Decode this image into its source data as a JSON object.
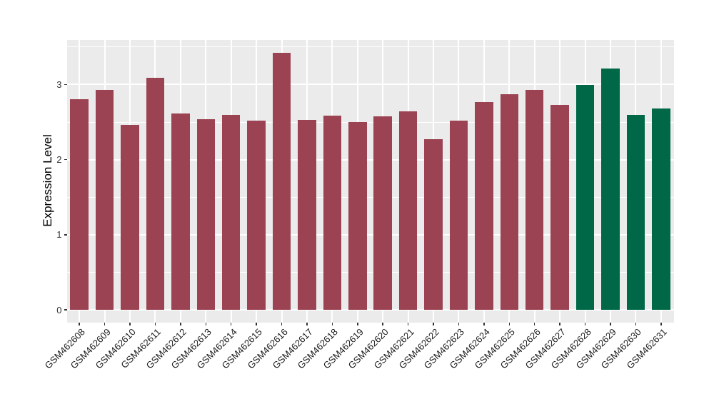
{
  "chart_data": {
    "type": "bar",
    "title": "",
    "xlabel": "",
    "ylabel": "Expression Level",
    "categories": [
      "GSM462608",
      "GSM462609",
      "GSM462610",
      "GSM462611",
      "GSM462612",
      "GSM462613",
      "GSM462614",
      "GSM462615",
      "GSM462616",
      "GSM462617",
      "GSM462618",
      "GSM462619",
      "GSM462620",
      "GSM462621",
      "GSM462622",
      "GSM462623",
      "GSM462624",
      "GSM462625",
      "GSM462626",
      "GSM462627",
      "GSM462628",
      "GSM462629",
      "GSM462630",
      "GSM462631"
    ],
    "values": [
      2.8,
      2.93,
      2.46,
      3.09,
      2.61,
      2.54,
      2.6,
      2.52,
      3.42,
      2.53,
      2.59,
      2.5,
      2.58,
      2.64,
      2.27,
      2.52,
      2.77,
      2.87,
      2.93,
      2.73,
      2.99,
      3.21,
      2.6,
      2.68
    ],
    "bar_colors": [
      "#9B4352",
      "#9B4352",
      "#9B4352",
      "#9B4352",
      "#9B4352",
      "#9B4352",
      "#9B4352",
      "#9B4352",
      "#9B4352",
      "#9B4352",
      "#9B4352",
      "#9B4352",
      "#9B4352",
      "#9B4352",
      "#9B4352",
      "#9B4352",
      "#9B4352",
      "#9B4352",
      "#9B4352",
      "#9B4352",
      "#006847",
      "#006847",
      "#006847",
      "#006847"
    ],
    "group_colors": {
      "control": "#9B4352",
      "highlighted": "#006847"
    },
    "ytick_labels": [
      "0",
      "1",
      "2",
      "3"
    ],
    "yticks": [
      0,
      1,
      2,
      3
    ],
    "minor_yticks": [
      0.5,
      1.5,
      2.5,
      3.5
    ],
    "ylim": [
      -0.164,
      3.593
    ],
    "grid": "on",
    "legend": "none",
    "panel_background": "#EBEBEB",
    "grid_color": "#FFFFFF",
    "axis_text_color": "#333333"
  }
}
